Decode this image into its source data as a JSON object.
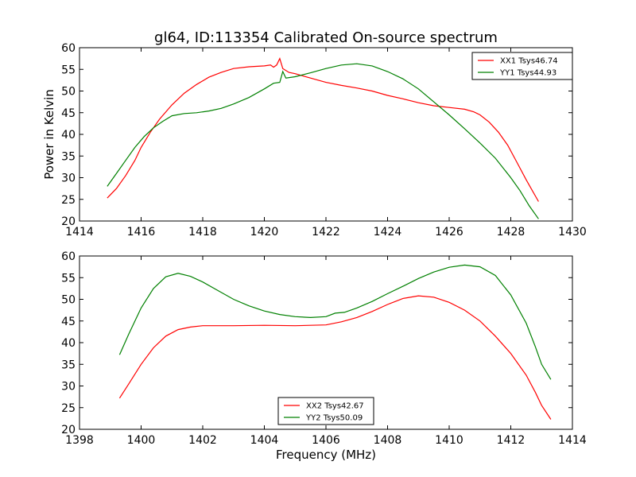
{
  "chart_data": [
    {
      "type": "line",
      "title": "gl64, ID:113354 Calibrated On-source spectrum",
      "xlabel": "",
      "ylabel": "Power in Kelvin",
      "xlim": [
        1414,
        1430
      ],
      "ylim": [
        20,
        60
      ],
      "xticks": [
        1414,
        1416,
        1418,
        1420,
        1422,
        1424,
        1426,
        1428,
        1430
      ],
      "yticks": [
        20,
        25,
        30,
        35,
        40,
        45,
        50,
        55,
        60
      ],
      "legend_position": "top-right",
      "series": [
        {
          "name": "XX1 Tsys46.74",
          "color": "#ff0000",
          "points": [
            [
              1414.9,
              25.3
            ],
            [
              1415.2,
              27.5
            ],
            [
              1415.5,
              30.5
            ],
            [
              1415.8,
              34.0
            ],
            [
              1416.0,
              37.0
            ],
            [
              1416.3,
              40.5
            ],
            [
              1416.6,
              43.5
            ],
            [
              1417.0,
              46.8
            ],
            [
              1417.4,
              49.5
            ],
            [
              1417.8,
              51.5
            ],
            [
              1418.2,
              53.2
            ],
            [
              1418.6,
              54.3
            ],
            [
              1419.0,
              55.2
            ],
            [
              1419.5,
              55.6
            ],
            [
              1420.0,
              55.8
            ],
            [
              1420.2,
              56.0
            ],
            [
              1420.3,
              55.5
            ],
            [
              1420.4,
              56.0
            ],
            [
              1420.5,
              57.5
            ],
            [
              1420.6,
              55.2
            ],
            [
              1420.8,
              54.3
            ],
            [
              1421.0,
              54.0
            ],
            [
              1421.5,
              53.0
            ],
            [
              1422.0,
              52.0
            ],
            [
              1422.5,
              51.3
            ],
            [
              1423.0,
              50.7
            ],
            [
              1423.5,
              50.0
            ],
            [
              1424.0,
              49.0
            ],
            [
              1424.5,
              48.2
            ],
            [
              1425.0,
              47.3
            ],
            [
              1425.5,
              46.6
            ],
            [
              1426.0,
              46.2
            ],
            [
              1426.5,
              45.8
            ],
            [
              1426.8,
              45.2
            ],
            [
              1427.0,
              44.5
            ],
            [
              1427.3,
              42.8
            ],
            [
              1427.6,
              40.5
            ],
            [
              1427.9,
              37.5
            ],
            [
              1428.2,
              33.5
            ],
            [
              1428.5,
              29.5
            ],
            [
              1428.7,
              27.0
            ],
            [
              1428.9,
              24.5
            ]
          ]
        },
        {
          "name": "YY1 Tsys44.93",
          "color": "#008000",
          "points": [
            [
              1414.9,
              28.0
            ],
            [
              1415.2,
              31.0
            ],
            [
              1415.5,
              34.0
            ],
            [
              1415.8,
              37.0
            ],
            [
              1416.1,
              39.5
            ],
            [
              1416.4,
              41.5
            ],
            [
              1416.7,
              43.0
            ],
            [
              1417.0,
              44.3
            ],
            [
              1417.4,
              44.8
            ],
            [
              1417.8,
              45.0
            ],
            [
              1418.2,
              45.4
            ],
            [
              1418.6,
              46.0
            ],
            [
              1419.0,
              47.0
            ],
            [
              1419.5,
              48.5
            ],
            [
              1420.0,
              50.5
            ],
            [
              1420.3,
              51.8
            ],
            [
              1420.5,
              52.0
            ],
            [
              1420.6,
              54.5
            ],
            [
              1420.7,
              53.0
            ],
            [
              1421.0,
              53.3
            ],
            [
              1421.5,
              54.2
            ],
            [
              1422.0,
              55.2
            ],
            [
              1422.5,
              56.0
            ],
            [
              1423.0,
              56.3
            ],
            [
              1423.5,
              55.8
            ],
            [
              1424.0,
              54.5
            ],
            [
              1424.5,
              52.8
            ],
            [
              1425.0,
              50.5
            ],
            [
              1425.5,
              47.5
            ],
            [
              1426.0,
              44.5
            ],
            [
              1426.5,
              41.3
            ],
            [
              1427.0,
              38.0
            ],
            [
              1427.5,
              34.5
            ],
            [
              1428.0,
              30.0
            ],
            [
              1428.3,
              27.0
            ],
            [
              1428.6,
              23.5
            ],
            [
              1428.9,
              20.5
            ]
          ]
        }
      ]
    },
    {
      "type": "line",
      "title": "",
      "xlabel": "Frequency (MHz)",
      "ylabel": "",
      "xlim": [
        1398,
        1414
      ],
      "ylim": [
        20,
        60
      ],
      "xticks": [
        1398,
        1400,
        1402,
        1404,
        1406,
        1408,
        1410,
        1412,
        1414
      ],
      "yticks": [
        20,
        25,
        30,
        35,
        40,
        45,
        50,
        55,
        60
      ],
      "legend_position": "bottom-center",
      "series": [
        {
          "name": "XX2 Tsys42.67",
          "color": "#ff0000",
          "points": [
            [
              1399.3,
              27.2
            ],
            [
              1399.6,
              30.5
            ],
            [
              1400.0,
              35.0
            ],
            [
              1400.4,
              38.8
            ],
            [
              1400.8,
              41.5
            ],
            [
              1401.2,
              43.0
            ],
            [
              1401.6,
              43.6
            ],
            [
              1402.0,
              43.9
            ],
            [
              1403.0,
              43.9
            ],
            [
              1404.0,
              44.0
            ],
            [
              1405.0,
              43.9
            ],
            [
              1406.0,
              44.1
            ],
            [
              1406.5,
              44.8
            ],
            [
              1407.0,
              45.8
            ],
            [
              1407.5,
              47.2
            ],
            [
              1408.0,
              48.8
            ],
            [
              1408.5,
              50.2
            ],
            [
              1409.0,
              50.8
            ],
            [
              1409.5,
              50.5
            ],
            [
              1410.0,
              49.3
            ],
            [
              1410.5,
              47.5
            ],
            [
              1411.0,
              45.0
            ],
            [
              1411.5,
              41.5
            ],
            [
              1412.0,
              37.5
            ],
            [
              1412.5,
              32.5
            ],
            [
              1412.8,
              28.5
            ],
            [
              1413.0,
              25.5
            ],
            [
              1413.3,
              22.3
            ]
          ]
        },
        {
          "name": "YY2 Tsys50.09",
          "color": "#008000",
          "points": [
            [
              1399.3,
              37.2
            ],
            [
              1399.6,
              42.0
            ],
            [
              1400.0,
              48.0
            ],
            [
              1400.4,
              52.5
            ],
            [
              1400.8,
              55.2
            ],
            [
              1401.2,
              56.0
            ],
            [
              1401.6,
              55.3
            ],
            [
              1402.0,
              54.0
            ],
            [
              1402.5,
              52.0
            ],
            [
              1403.0,
              50.0
            ],
            [
              1403.5,
              48.5
            ],
            [
              1404.0,
              47.3
            ],
            [
              1404.5,
              46.5
            ],
            [
              1405.0,
              46.0
            ],
            [
              1405.5,
              45.8
            ],
            [
              1406.0,
              46.0
            ],
            [
              1406.3,
              46.8
            ],
            [
              1406.6,
              47.0
            ],
            [
              1407.0,
              48.0
            ],
            [
              1407.5,
              49.5
            ],
            [
              1408.0,
              51.3
            ],
            [
              1408.5,
              53.0
            ],
            [
              1409.0,
              54.8
            ],
            [
              1409.5,
              56.3
            ],
            [
              1410.0,
              57.4
            ],
            [
              1410.5,
              57.9
            ],
            [
              1411.0,
              57.5
            ],
            [
              1411.5,
              55.5
            ],
            [
              1412.0,
              51.0
            ],
            [
              1412.5,
              44.5
            ],
            [
              1412.8,
              39.0
            ],
            [
              1413.0,
              35.0
            ],
            [
              1413.3,
              31.5
            ]
          ]
        }
      ]
    }
  ]
}
